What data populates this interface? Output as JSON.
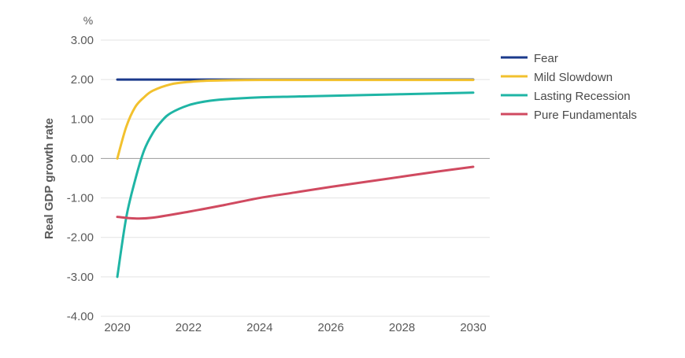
{
  "chart_data": {
    "type": "line",
    "unit_label": "%",
    "title": "",
    "xlabel": "",
    "ylabel": "Real GDP growth rate",
    "xlim": [
      2020,
      2030
    ],
    "ylim": [
      -4,
      3
    ],
    "x_ticks": [
      2020,
      2022,
      2024,
      2026,
      2028,
      2030
    ],
    "x_tick_labels": [
      "2020",
      "2022",
      "2024",
      "2026",
      "2028",
      "2030"
    ],
    "y_ticks": [
      3,
      2,
      1,
      0,
      -1,
      -2,
      -3,
      -4
    ],
    "y_tick_labels": [
      "3.00",
      "2.00",
      "1.00",
      "0.00",
      "-1.00",
      "-2.00",
      "-3.00",
      "-4.00"
    ],
    "grid": true,
    "legend_position": "right",
    "series": [
      {
        "name": "Fear",
        "color": "#1b3a8c",
        "x": [
          2020,
          2021,
          2022,
          2023,
          2024,
          2025,
          2026,
          2027,
          2028,
          2029,
          2030
        ],
        "y": [
          2.0,
          2.0,
          2.0,
          2.0,
          2.0,
          2.0,
          2.0,
          2.0,
          2.0,
          2.0,
          2.0
        ]
      },
      {
        "name": "Mild Slowdown",
        "color": "#f2c12e",
        "x": [
          2020,
          2020.25,
          2020.5,
          2020.75,
          2021,
          2021.5,
          2022,
          2022.5,
          2023,
          2024,
          2026,
          2028,
          2030
        ],
        "y": [
          0.0,
          0.8,
          1.3,
          1.55,
          1.72,
          1.88,
          1.94,
          1.97,
          1.98,
          1.99,
          1.99,
          1.99,
          1.99
        ]
      },
      {
        "name": "Lasting Recession",
        "color": "#1fb5a5",
        "x": [
          2020,
          2020.25,
          2020.5,
          2020.75,
          2021,
          2021.25,
          2021.5,
          2022,
          2022.5,
          2023,
          2024,
          2025,
          2026,
          2027,
          2028,
          2029,
          2030
        ],
        "y": [
          -3.0,
          -1.5,
          -0.55,
          0.2,
          0.65,
          0.95,
          1.15,
          1.35,
          1.45,
          1.5,
          1.55,
          1.57,
          1.59,
          1.61,
          1.63,
          1.65,
          1.67
        ]
      },
      {
        "name": "Pure Fundamentals",
        "color": "#d04a60",
        "x": [
          2020,
          2020.5,
          2021,
          2022,
          2023,
          2024,
          2025,
          2026,
          2027,
          2028,
          2029,
          2030
        ],
        "y": [
          -1.48,
          -1.52,
          -1.5,
          -1.35,
          -1.18,
          -1.0,
          -0.86,
          -0.72,
          -0.59,
          -0.46,
          -0.33,
          -0.21
        ]
      }
    ]
  }
}
